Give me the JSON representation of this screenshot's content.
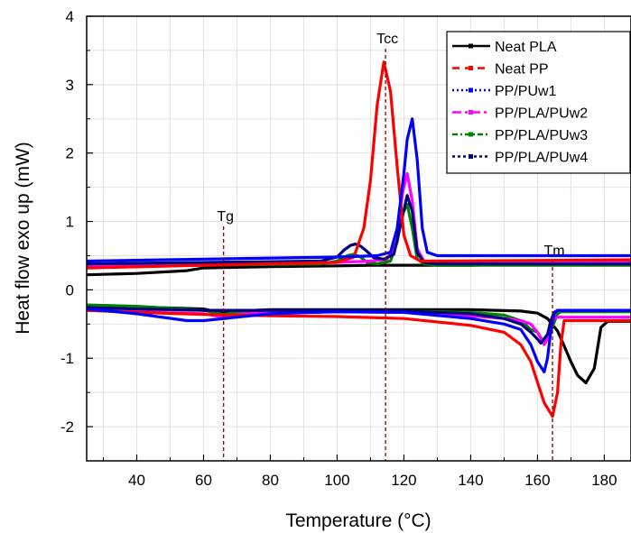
{
  "chart_data": {
    "type": "line",
    "title": "",
    "xlabel": "Temperature (°C)",
    "ylabel": "Heat flow exo up (mW)",
    "xlim": [
      25,
      188
    ],
    "ylim": [
      -2.5,
      4
    ],
    "xticks": [
      40,
      60,
      80,
      100,
      120,
      140,
      160,
      180
    ],
    "yticks": [
      -2,
      -1,
      0,
      1,
      2,
      3,
      4
    ],
    "grid": true,
    "legend_position": "top-right",
    "annotations": [
      {
        "label": "Tg",
        "x": 66
      },
      {
        "label": "Tcc",
        "x": 114.5
      },
      {
        "label": "Tm",
        "x": 164.5
      }
    ],
    "series": [
      {
        "name": "Neat PLA",
        "color": "#000000",
        "cooling": {
          "x": [
            25,
            40,
            55,
            60,
            80,
            100,
            110,
            120,
            130,
            140,
            150,
            160,
            170,
            188
          ],
          "y": [
            0.22,
            0.24,
            0.28,
            0.32,
            0.34,
            0.35,
            0.36,
            0.36,
            0.36,
            0.36,
            0.37,
            0.37,
            0.37,
            0.37
          ]
        },
        "heating": {
          "x": [
            25,
            40,
            60,
            64,
            66,
            70,
            80,
            100,
            120,
            140,
            155,
            160,
            163,
            166,
            168,
            170,
            172,
            174.5,
            177,
            179,
            181,
            188
          ],
          "y": [
            -0.23,
            -0.25,
            -0.28,
            -0.32,
            -0.34,
            -0.31,
            -0.29,
            -0.29,
            -0.29,
            -0.29,
            -0.31,
            -0.34,
            -0.42,
            -0.6,
            -0.82,
            -1.05,
            -1.25,
            -1.36,
            -1.15,
            -0.55,
            -0.46,
            -0.46
          ]
        }
      },
      {
        "name": "Neat PP",
        "color": "#ff0000",
        "cooling": {
          "x": [
            25,
            60,
            100,
            105,
            108,
            110,
            112,
            114,
            116,
            118,
            120,
            122,
            125,
            130,
            188
          ],
          "y": [
            0.32,
            0.36,
            0.4,
            0.48,
            0.9,
            1.6,
            2.7,
            3.33,
            2.9,
            1.8,
            0.8,
            0.5,
            0.42,
            0.42,
            0.44
          ]
        },
        "heating": {
          "x": [
            25,
            40,
            60,
            80,
            100,
            120,
            140,
            150,
            155,
            158,
            160,
            162,
            164.5,
            166,
            167,
            168,
            188
          ],
          "y": [
            -0.3,
            -0.33,
            -0.36,
            -0.38,
            -0.39,
            -0.42,
            -0.52,
            -0.62,
            -0.8,
            -1.05,
            -1.35,
            -1.65,
            -1.85,
            -1.5,
            -0.8,
            -0.45,
            -0.45
          ]
        }
      },
      {
        "name": "PP/PUw1",
        "color": "#0000ff",
        "cooling": {
          "x": [
            25,
            60,
            100,
            112,
            116,
            118,
            120,
            121,
            122.5,
            124,
            125.5,
            127,
            130,
            188
          ],
          "y": [
            0.42,
            0.45,
            0.48,
            0.5,
            0.55,
            0.9,
            1.7,
            2.2,
            2.5,
            1.9,
            0.9,
            0.55,
            0.5,
            0.5
          ]
        },
        "heating": {
          "x": [
            25,
            40,
            55,
            60,
            80,
            100,
            120,
            140,
            150,
            155,
            158,
            160,
            162,
            163,
            164,
            165,
            166,
            188
          ],
          "y": [
            -0.28,
            -0.35,
            -0.45,
            -0.45,
            -0.35,
            -0.32,
            -0.33,
            -0.42,
            -0.5,
            -0.58,
            -0.8,
            -1.05,
            -1.2,
            -1.0,
            -0.6,
            -0.35,
            -0.3,
            -0.3
          ]
        }
      },
      {
        "name": "PP/PLA/PUw2",
        "color": "#ff00ff",
        "cooling": {
          "x": [
            25,
            60,
            100,
            110,
            115,
            118,
            119.5,
            121,
            122.5,
            124,
            126,
            130,
            188
          ],
          "y": [
            0.35,
            0.38,
            0.4,
            0.42,
            0.45,
            0.7,
            1.4,
            1.7,
            1.3,
            0.6,
            0.42,
            0.42,
            0.42
          ]
        },
        "heating": {
          "x": [
            25,
            40,
            60,
            66,
            70,
            80,
            100,
            120,
            140,
            150,
            155,
            158,
            160,
            162,
            163,
            164,
            165,
            166,
            188
          ],
          "y": [
            -0.3,
            -0.32,
            -0.35,
            -0.4,
            -0.36,
            -0.33,
            -0.32,
            -0.33,
            -0.38,
            -0.42,
            -0.45,
            -0.5,
            -0.62,
            -0.8,
            -0.72,
            -0.55,
            -0.42,
            -0.4,
            -0.4
          ]
        }
      },
      {
        "name": "PP/PLA/PUw3",
        "color": "#008000",
        "cooling": {
          "x": [
            25,
            60,
            95,
            100,
            103,
            105,
            107,
            109,
            112,
            116,
            118,
            119.5,
            121,
            122.5,
            124,
            126,
            130,
            188
          ],
          "y": [
            0.35,
            0.36,
            0.38,
            0.42,
            0.5,
            0.52,
            0.48,
            0.4,
            0.38,
            0.42,
            0.7,
            1.1,
            1.25,
            0.9,
            0.45,
            0.38,
            0.36,
            0.36
          ]
        },
        "heating": {
          "x": [
            25,
            40,
            60,
            66,
            70,
            80,
            100,
            120,
            140,
            150,
            155,
            158,
            160,
            162,
            164,
            166,
            167,
            188
          ],
          "y": [
            -0.22,
            -0.24,
            -0.3,
            -0.36,
            -0.32,
            -0.3,
            -0.3,
            -0.31,
            -0.33,
            -0.37,
            -0.45,
            -0.58,
            -0.62,
            -0.78,
            -0.6,
            -0.35,
            -0.32,
            -0.32
          ]
        }
      },
      {
        "name": "PP/PLA/PUw4",
        "color": "#000080",
        "cooling": {
          "x": [
            25,
            60,
            95,
            100,
            102,
            104,
            105.5,
            107,
            109,
            111,
            114,
            117,
            119,
            121,
            122.5,
            124,
            126,
            130,
            188
          ],
          "y": [
            0.38,
            0.4,
            0.42,
            0.48,
            0.58,
            0.65,
            0.67,
            0.64,
            0.56,
            0.47,
            0.45,
            0.52,
            0.95,
            1.38,
            1.15,
            0.55,
            0.4,
            0.38,
            0.38
          ]
        },
        "heating": {
          "x": [
            25,
            40,
            60,
            80,
            100,
            120,
            140,
            150,
            155,
            158,
            160,
            161,
            163,
            164,
            165,
            166,
            188
          ],
          "y": [
            -0.26,
            -0.28,
            -0.3,
            -0.3,
            -0.3,
            -0.31,
            -0.35,
            -0.42,
            -0.5,
            -0.62,
            -0.72,
            -0.78,
            -0.65,
            -0.45,
            -0.33,
            -0.3,
            -0.3
          ]
        }
      }
    ]
  }
}
